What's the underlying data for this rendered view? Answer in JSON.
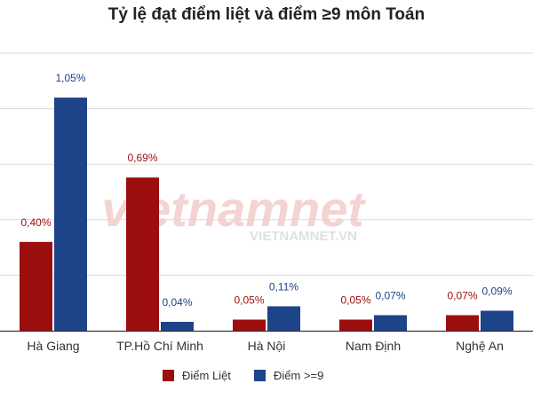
{
  "chart_data": {
    "type": "bar",
    "title": "Tỷ lệ đạt điểm liệt và điểm ≥9 môn Toán",
    "categories": [
      "Hà Giang",
      "TP.Hồ Chí Minh",
      "Hà Nội",
      "Nam Định",
      "Nghệ An"
    ],
    "series": [
      {
        "name": "Điểm Liệt",
        "color": "#9c0d0d",
        "values": [
          0.4,
          0.69,
          0.05,
          0.05,
          0.07
        ],
        "labels": [
          "0,40%",
          "0,69%",
          "0,05%",
          "0,05%",
          "0,07%"
        ]
      },
      {
        "name": "Điểm >=9",
        "color": "#1d4388",
        "values": [
          1.05,
          0.04,
          0.11,
          0.07,
          0.09
        ],
        "labels": [
          "1,05%",
          "0,04%",
          "0,11%",
          "0,07%",
          "0,09%"
        ]
      }
    ],
    "ylim": [
      0,
      1.25
    ],
    "grid": true,
    "legend": "bottom"
  },
  "watermark": {
    "main": "vietnamnet",
    "sub": "VIETNAMNET.VN"
  }
}
